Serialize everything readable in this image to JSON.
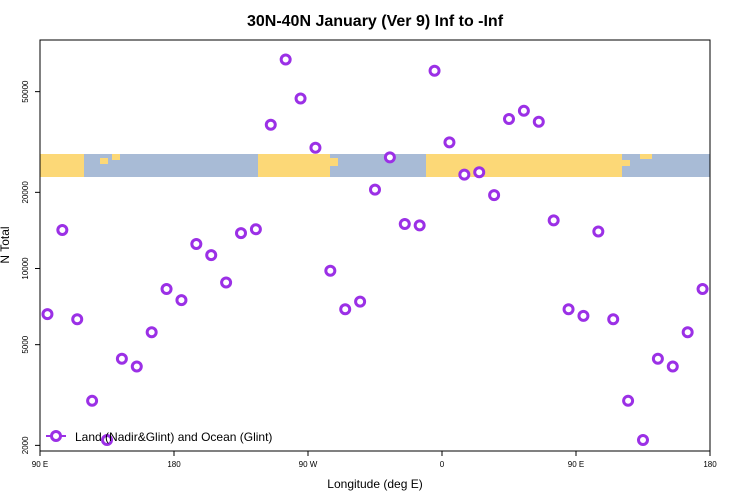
{
  "chart_data": {
    "type": "scatter",
    "title": "30N-40N January (Ver 9)   Inf to -Inf",
    "xlabel": "Longitude (deg E)",
    "ylabel": "N Total",
    "y_scale": "log",
    "ylim": [
      1900,
      80000
    ],
    "xlim_display": [
      "90 E",
      "180",
      "90 W",
      "0",
      "90 E",
      "180"
    ],
    "xtick_positions_deg": [
      90,
      180,
      270,
      360,
      450,
      540
    ],
    "x_range_deg": [
      90,
      540
    ],
    "yticks": [
      2000,
      5000,
      10000,
      20000,
      50000
    ],
    "ytick_labels": [
      "2000",
      "5000",
      "10000",
      "20000",
      "50000"
    ],
    "legend": {
      "label": "Land (Nadir&Glint) and Ocean (Glint)",
      "position": "bottom-left"
    },
    "series": [
      {
        "name": "Land (Nadir&Glint) and Ocean (Glint)",
        "color": "#9b30e6",
        "x": [
          95,
          105,
          115,
          125,
          135,
          145,
          155,
          165,
          175,
          185,
          195,
          205,
          215,
          225,
          235,
          245,
          255,
          265,
          275,
          285,
          295,
          305,
          315,
          325,
          335,
          345,
          355,
          365,
          375,
          385,
          395,
          405,
          415,
          425,
          435,
          445,
          455,
          465,
          475,
          485,
          495,
          505,
          515,
          525,
          535
        ],
        "y": [
          6600,
          14200,
          6300,
          3000,
          2100,
          4400,
          4100,
          5600,
          8300,
          7500,
          12500,
          11300,
          8800,
          13800,
          14300,
          37000,
          67000,
          47000,
          30000,
          9800,
          6900,
          7400,
          20500,
          27500,
          15000,
          14800,
          60500,
          31500,
          23500,
          24000,
          19500,
          39000,
          42000,
          38000,
          15500,
          6900,
          6500,
          14000,
          6300,
          3000,
          2100,
          4400,
          4100,
          5600,
          8300
        ]
      }
    ],
    "map_strip": {
      "ocean_color": "#a8bbd6",
      "land_color": "#fcd877"
    }
  }
}
